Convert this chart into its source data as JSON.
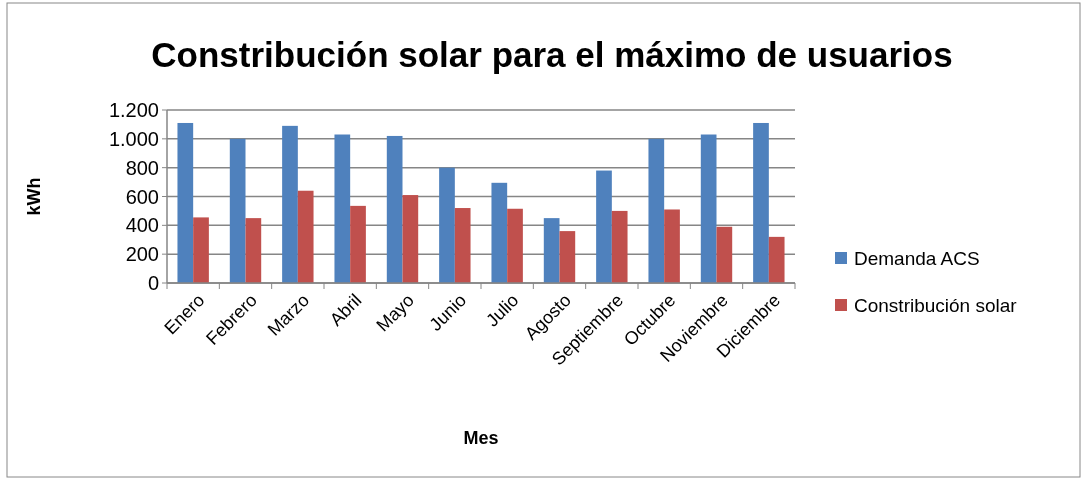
{
  "chart_data": {
    "type": "bar",
    "title": "Constribución solar para el máximo de usuarios",
    "xlabel": "Mes",
    "ylabel": "kWh",
    "categories": [
      "Enero",
      "Febrero",
      "Marzo",
      "Abril",
      "Mayo",
      "Junio",
      "Julio",
      "Agosto",
      "Septiembre",
      "Octubre",
      "Noviembre",
      "Diciembre"
    ],
    "series": [
      {
        "name": "Demanda ACS",
        "color": "#4f81bd",
        "values": [
          1110,
          1000,
          1090,
          1030,
          1020,
          800,
          695,
          450,
          780,
          1000,
          1030,
          1110
        ]
      },
      {
        "name": "Constribución solar",
        "color": "#c0504d",
        "values": [
          455,
          450,
          640,
          535,
          610,
          520,
          515,
          360,
          500,
          510,
          390,
          320
        ]
      }
    ],
    "ylim": [
      0,
      1200
    ],
    "yticks": [
      {
        "value": 0,
        "label": "0"
      },
      {
        "value": 200,
        "label": "200"
      },
      {
        "value": 400,
        "label": "400"
      },
      {
        "value": 600,
        "label": "600"
      },
      {
        "value": 800,
        "label": "800"
      },
      {
        "value": 1000,
        "label": "1.000"
      },
      {
        "value": 1200,
        "label": "1.200"
      }
    ],
    "grid": "y",
    "legend": "right"
  }
}
